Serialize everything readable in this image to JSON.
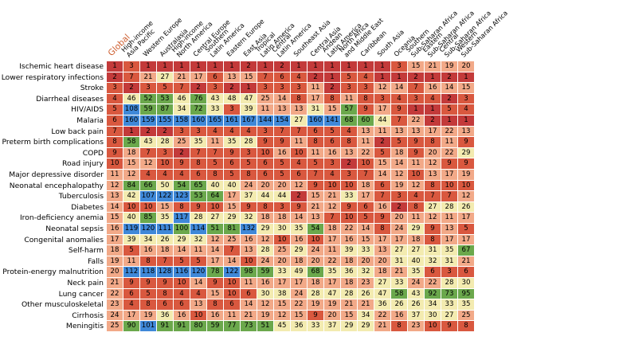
{
  "chart_data": {
    "type": "heatmap",
    "columns": [
      "Global",
      "High-income\nAsia Pacific",
      "Western Europe",
      "Australasia",
      "High-income\nNorth America",
      "Central Europe",
      "Southern\nLatin America",
      "Eastern Europe",
      "East Asia",
      "Tropical\nLatin America",
      "Central\nLatin America",
      "Southeast Asia",
      "Central Asia",
      "Andean\nLatin America",
      "North Africa\nand Middle East",
      "Caribbean",
      "South Asia",
      "Oceania",
      "Southern\nSub-Saharan Africa",
      "Eastern\nSub-Saharan Africa",
      "Central\nSub-Saharan Africa",
      "Western\nSub-Saharan Africa"
    ],
    "rows": [
      {
        "label": "Ischemic heart disease",
        "values": [
          1,
          3,
          1,
          1,
          1,
          1,
          1,
          1,
          2,
          1,
          2,
          1,
          1,
          1,
          1,
          1,
          1,
          3,
          15,
          21,
          19,
          20
        ]
      },
      {
        "label": "Lower respiratory infections",
        "values": [
          2,
          7,
          21,
          27,
          21,
          17,
          6,
          13,
          15,
          7,
          6,
          4,
          2,
          1,
          5,
          4,
          1,
          1,
          2,
          1,
          2,
          1
        ]
      },
      {
        "label": "Stroke",
        "values": [
          3,
          2,
          3,
          5,
          7,
          2,
          3,
          2,
          1,
          3,
          3,
          3,
          11,
          2,
          3,
          3,
          12,
          14,
          7,
          16,
          14,
          15
        ]
      },
      {
        "label": "Diarrheal diseases",
        "values": [
          4,
          46,
          52,
          53,
          46,
          76,
          43,
          48,
          47,
          25,
          14,
          8,
          17,
          8,
          11,
          8,
          3,
          4,
          3,
          4,
          2,
          3
        ]
      },
      {
        "label": "HIV/AIDS",
        "values": [
          5,
          108,
          59,
          87,
          34,
          72,
          33,
          3,
          39,
          11,
          13,
          13,
          31,
          15,
          57,
          9,
          17,
          9,
          1,
          1,
          5,
          4
        ]
      },
      {
        "label": "Malaria",
        "values": [
          6,
          160,
          159,
          155,
          158,
          160,
          165,
          161,
          167,
          144,
          154,
          27,
          160,
          141,
          68,
          60,
          44,
          7,
          22,
          2,
          1,
          1
        ]
      },
      {
        "label": "Low back pain",
        "values": [
          7,
          1,
          2,
          2,
          3,
          3,
          4,
          4,
          4,
          3,
          7,
          7,
          6,
          5,
          4,
          13,
          11,
          13,
          13,
          17,
          22,
          13
        ]
      },
      {
        "label": "Preterm birth complications",
        "values": [
          8,
          58,
          43,
          28,
          25,
          35,
          11,
          35,
          28,
          9,
          9,
          11,
          8,
          6,
          8,
          11,
          2,
          5,
          9,
          8,
          11,
          9
        ]
      },
      {
        "label": "COPD",
        "values": [
          9,
          18,
          7,
          3,
          2,
          7,
          7,
          9,
          3,
          10,
          16,
          10,
          11,
          16,
          13,
          22,
          5,
          18,
          9,
          20,
          22,
          29
        ]
      },
      {
        "label": "Road injury",
        "values": [
          10,
          15,
          12,
          10,
          9,
          8,
          5,
          6,
          5,
          6,
          5,
          4,
          5,
          3,
          2,
          10,
          15,
          14,
          11,
          12,
          9,
          9
        ]
      },
      {
        "label": "Major depressive disorder",
        "values": [
          11,
          12,
          4,
          4,
          4,
          6,
          8,
          5,
          8,
          6,
          5,
          6,
          7,
          4,
          3,
          7,
          14,
          12,
          10,
          13,
          17,
          19
        ]
      },
      {
        "label": "Neonatal encephalopathy",
        "values": [
          12,
          84,
          66,
          50,
          54,
          65,
          40,
          40,
          24,
          20,
          20,
          12,
          9,
          10,
          10,
          18,
          6,
          19,
          12,
          8,
          10,
          10
        ]
      },
      {
        "label": "Tuberculosis",
        "values": [
          13,
          42,
          107,
          122,
          123,
          53,
          64,
          17,
          37,
          44,
          44,
          2,
          15,
          21,
          33,
          17,
          7,
          3,
          4,
          7,
          7,
          12
        ]
      },
      {
        "label": "Diabetes",
        "values": [
          14,
          10,
          10,
          15,
          8,
          9,
          10,
          15,
          9,
          8,
          3,
          9,
          21,
          12,
          9,
          6,
          16,
          2,
          8,
          27,
          28,
          26
        ]
      },
      {
        "label": "Iron-deficiency anemia",
        "values": [
          15,
          40,
          85,
          35,
          117,
          28,
          27,
          29,
          32,
          18,
          18,
          14,
          13,
          7,
          10,
          5,
          9,
          20,
          11,
          12,
          11,
          17
        ]
      },
      {
        "label": "Neonatal sepsis",
        "values": [
          16,
          119,
          120,
          111,
          100,
          114,
          51,
          81,
          132,
          29,
          30,
          35,
          54,
          18,
          22,
          14,
          8,
          24,
          29,
          9,
          13,
          5
        ]
      },
      {
        "label": "Congenital anomalies",
        "values": [
          17,
          39,
          34,
          26,
          29,
          32,
          12,
          25,
          16,
          12,
          10,
          16,
          10,
          17,
          16,
          15,
          17,
          17,
          18,
          8,
          17,
          17
        ]
      },
      {
        "label": "Self-harm",
        "values": [
          18,
          5,
          16,
          18,
          14,
          11,
          14,
          7,
          13,
          28,
          25,
          29,
          24,
          11,
          39,
          33,
          13,
          27,
          27,
          31,
          35,
          67
        ]
      },
      {
        "label": "Falls",
        "values": [
          19,
          11,
          8,
          7,
          5,
          5,
          17,
          14,
          10,
          24,
          20,
          18,
          20,
          22,
          18,
          20,
          20,
          31,
          40,
          32,
          31,
          21
        ]
      },
      {
        "label": "Protein-energy malnutrition",
        "values": [
          20,
          112,
          118,
          128,
          116,
          120,
          78,
          122,
          98,
          59,
          33,
          49,
          68,
          35,
          36,
          32,
          18,
          21,
          35,
          6,
          3,
          6
        ]
      },
      {
        "label": "Neck pain",
        "values": [
          21,
          9,
          9,
          9,
          10,
          14,
          9,
          10,
          11,
          16,
          17,
          17,
          18,
          17,
          18,
          23,
          27,
          33,
          24,
          22,
          28,
          30
        ]
      },
      {
        "label": "Lung cancer",
        "values": [
          22,
          6,
          5,
          8,
          4,
          4,
          15,
          10,
          6,
          30,
          38,
          24,
          28,
          47,
          28,
          26,
          47,
          58,
          43,
          92,
          73,
          95
        ]
      },
      {
        "label": "Other musculoskeletal",
        "values": [
          23,
          4,
          8,
          6,
          6,
          13,
          8,
          6,
          14,
          12,
          15,
          22,
          19,
          19,
          21,
          21,
          36,
          26,
          26,
          34,
          33,
          35
        ]
      },
      {
        "label": "Cirrhosis",
        "values": [
          24,
          17,
          19,
          36,
          16,
          10,
          16,
          11,
          21,
          19,
          12,
          15,
          9,
          20,
          15,
          34,
          22,
          16,
          37,
          30,
          27,
          25
        ]
      },
      {
        "label": "Meningitis",
        "values": [
          25,
          90,
          101,
          91,
          91,
          80,
          59,
          77,
          73,
          51,
          45,
          36,
          33,
          37,
          29,
          29,
          21,
          8,
          23,
          10,
          9,
          8
        ]
      }
    ],
    "colors": {
      "top": "#c33a3a",
      "high": "#d9583f",
      "upper_mid": "#f2a988",
      "mid": "#f3ebb0",
      "low": "#6ba84c",
      "very_low": "#3f88d8"
    }
  }
}
